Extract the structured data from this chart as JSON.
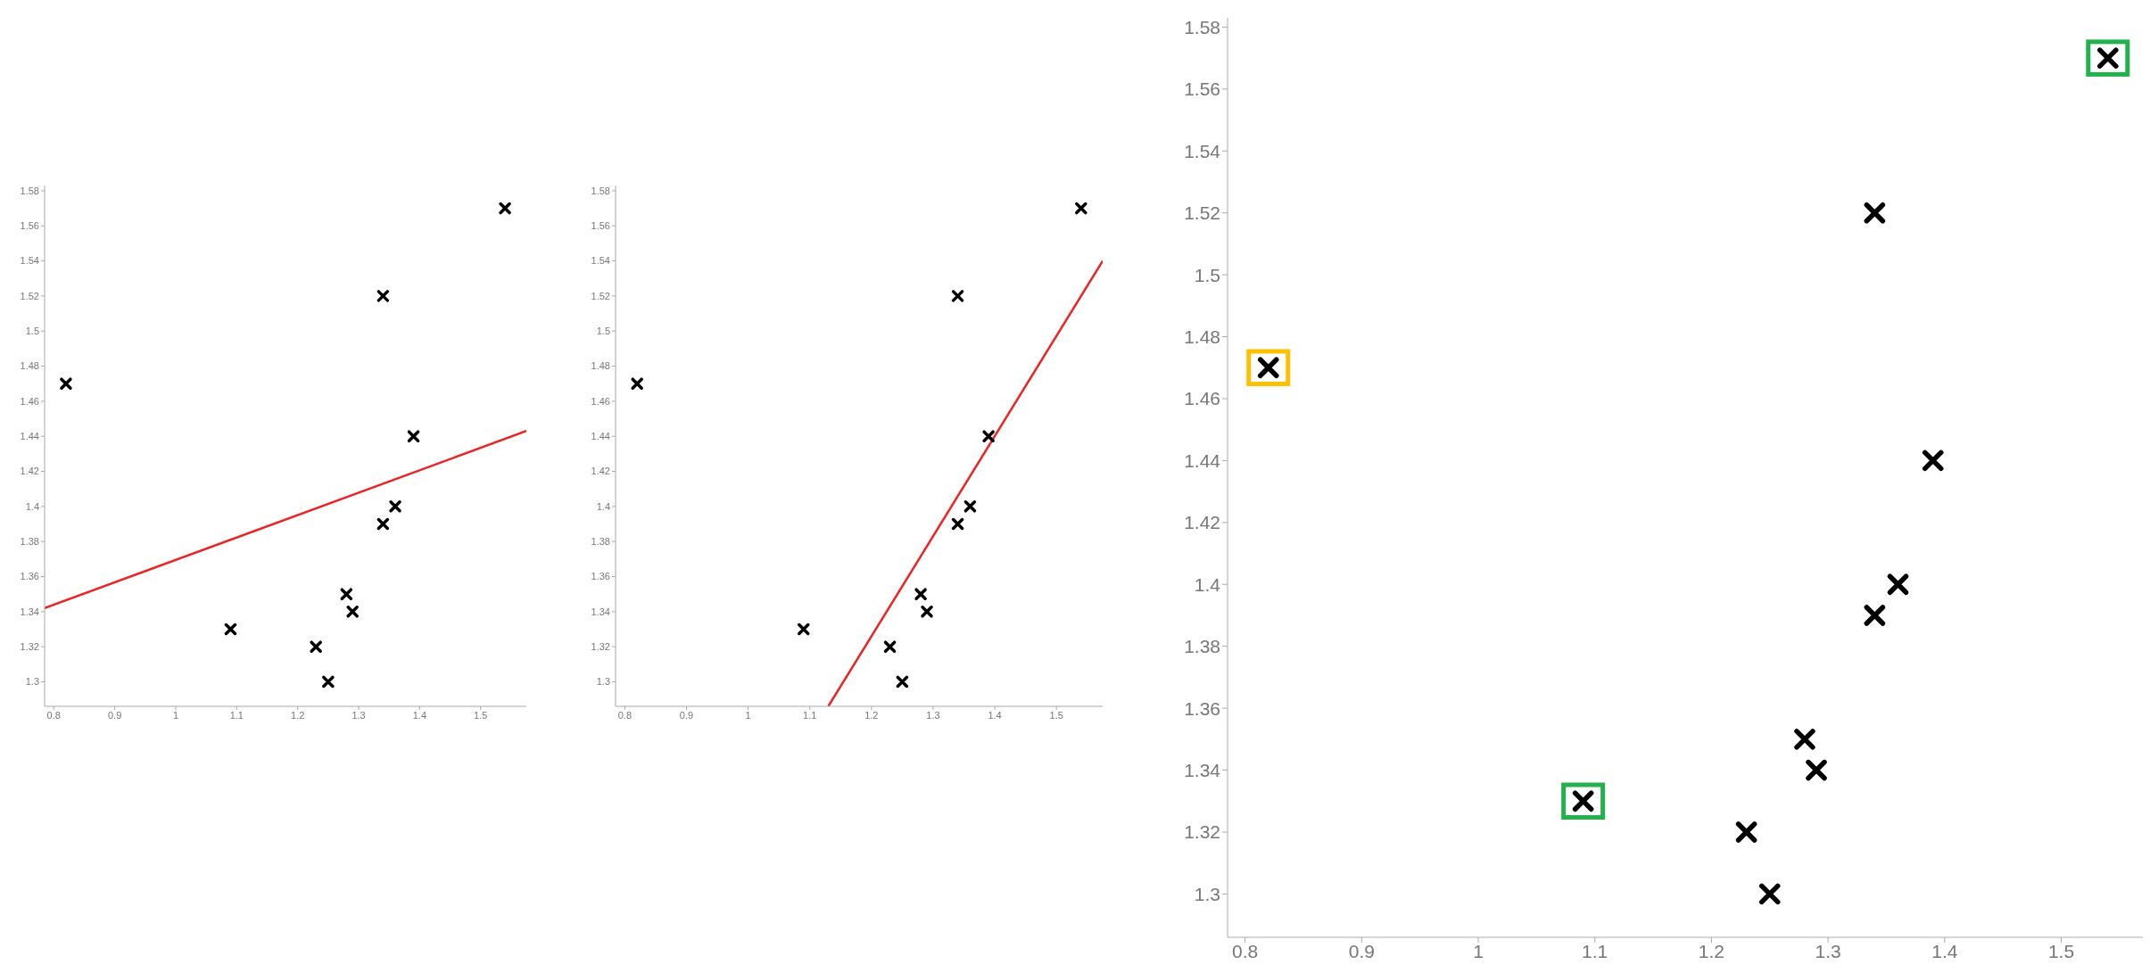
{
  "chart_data": [
    {
      "type": "scatter",
      "x": [
        0.82,
        1.09,
        1.23,
        1.25,
        1.28,
        1.29,
        1.34,
        1.34,
        1.36,
        1.39,
        1.54
      ],
      "xlim": [
        0.785,
        1.575
      ],
      "ylim": [
        1.286,
        1.583
      ],
      "xticks": [
        0.8,
        0.9,
        1,
        1.1,
        1.2,
        1.3,
        1.4,
        1.5
      ],
      "yticks": [
        1.3,
        1.32,
        1.34,
        1.36,
        1.38,
        1.4,
        1.42,
        1.44,
        1.46,
        1.48,
        1.5,
        1.52,
        1.54,
        1.56,
        1.58
      ],
      "grid": false,
      "legend": false,
      "series": [
        {
          "color": "#000000",
          "marker": "cross",
          "values": [
            1.47,
            1.33,
            1.32,
            1.3,
            1.35,
            1.34,
            1.39,
            1.52,
            1.4,
            1.44,
            1.57
          ]
        },
        {
          "type": "line",
          "color": "#ee2222",
          "line_style": "solid",
          "x": [
            0.785,
            1.575
          ],
          "values": [
            1.342,
            1.443
          ]
        }
      ]
    },
    {
      "type": "scatter",
      "x": [
        0.82,
        1.09,
        1.23,
        1.25,
        1.28,
        1.29,
        1.34,
        1.34,
        1.36,
        1.39,
        1.54
      ],
      "xlim": [
        0.785,
        1.575
      ],
      "ylim": [
        1.286,
        1.583
      ],
      "xticks": [
        0.8,
        0.9,
        1,
        1.1,
        1.2,
        1.3,
        1.4,
        1.5
      ],
      "yticks": [
        1.3,
        1.32,
        1.34,
        1.36,
        1.38,
        1.4,
        1.42,
        1.44,
        1.46,
        1.48,
        1.5,
        1.52,
        1.54,
        1.56,
        1.58
      ],
      "grid": false,
      "legend": false,
      "series": [
        {
          "color": "#000000",
          "marker": "cross",
          "values": [
            1.47,
            1.33,
            1.32,
            1.3,
            1.35,
            1.34,
            1.39,
            1.52,
            1.4,
            1.44,
            1.57
          ]
        },
        {
          "type": "line",
          "color": "#ee2222",
          "line_style": "solid",
          "x": [
            1.13,
            1.575
          ],
          "values": [
            1.286,
            1.54
          ]
        }
      ]
    },
    {
      "type": "scatter",
      "x": [
        0.82,
        1.09,
        1.23,
        1.25,
        1.28,
        1.29,
        1.34,
        1.34,
        1.36,
        1.39,
        1.54
      ],
      "xlim": [
        0.785,
        1.57
      ],
      "ylim": [
        1.286,
        1.583
      ],
      "xticks": [
        0.8,
        0.9,
        1,
        1.1,
        1.2,
        1.3,
        1.4,
        1.5
      ],
      "yticks": [
        1.3,
        1.32,
        1.34,
        1.36,
        1.38,
        1.4,
        1.42,
        1.44,
        1.46,
        1.48,
        1.5,
        1.52,
        1.54,
        1.56,
        1.58
      ],
      "grid": false,
      "legend": false,
      "marker": "cross",
      "series": [
        {
          "color": "#000000",
          "values": [
            1.47,
            1.33,
            1.32,
            1.3,
            1.35,
            1.34,
            1.39,
            1.52,
            1.4,
            1.44,
            1.57
          ]
        },
        {
          "marker": "square",
          "x": [
            0.82,
            1.09,
            1.54
          ],
          "values": [
            1.47,
            1.33,
            1.57
          ],
          "colors": [
            "#ffc000",
            "#22b14c",
            "#22b14c"
          ]
        }
      ]
    }
  ]
}
